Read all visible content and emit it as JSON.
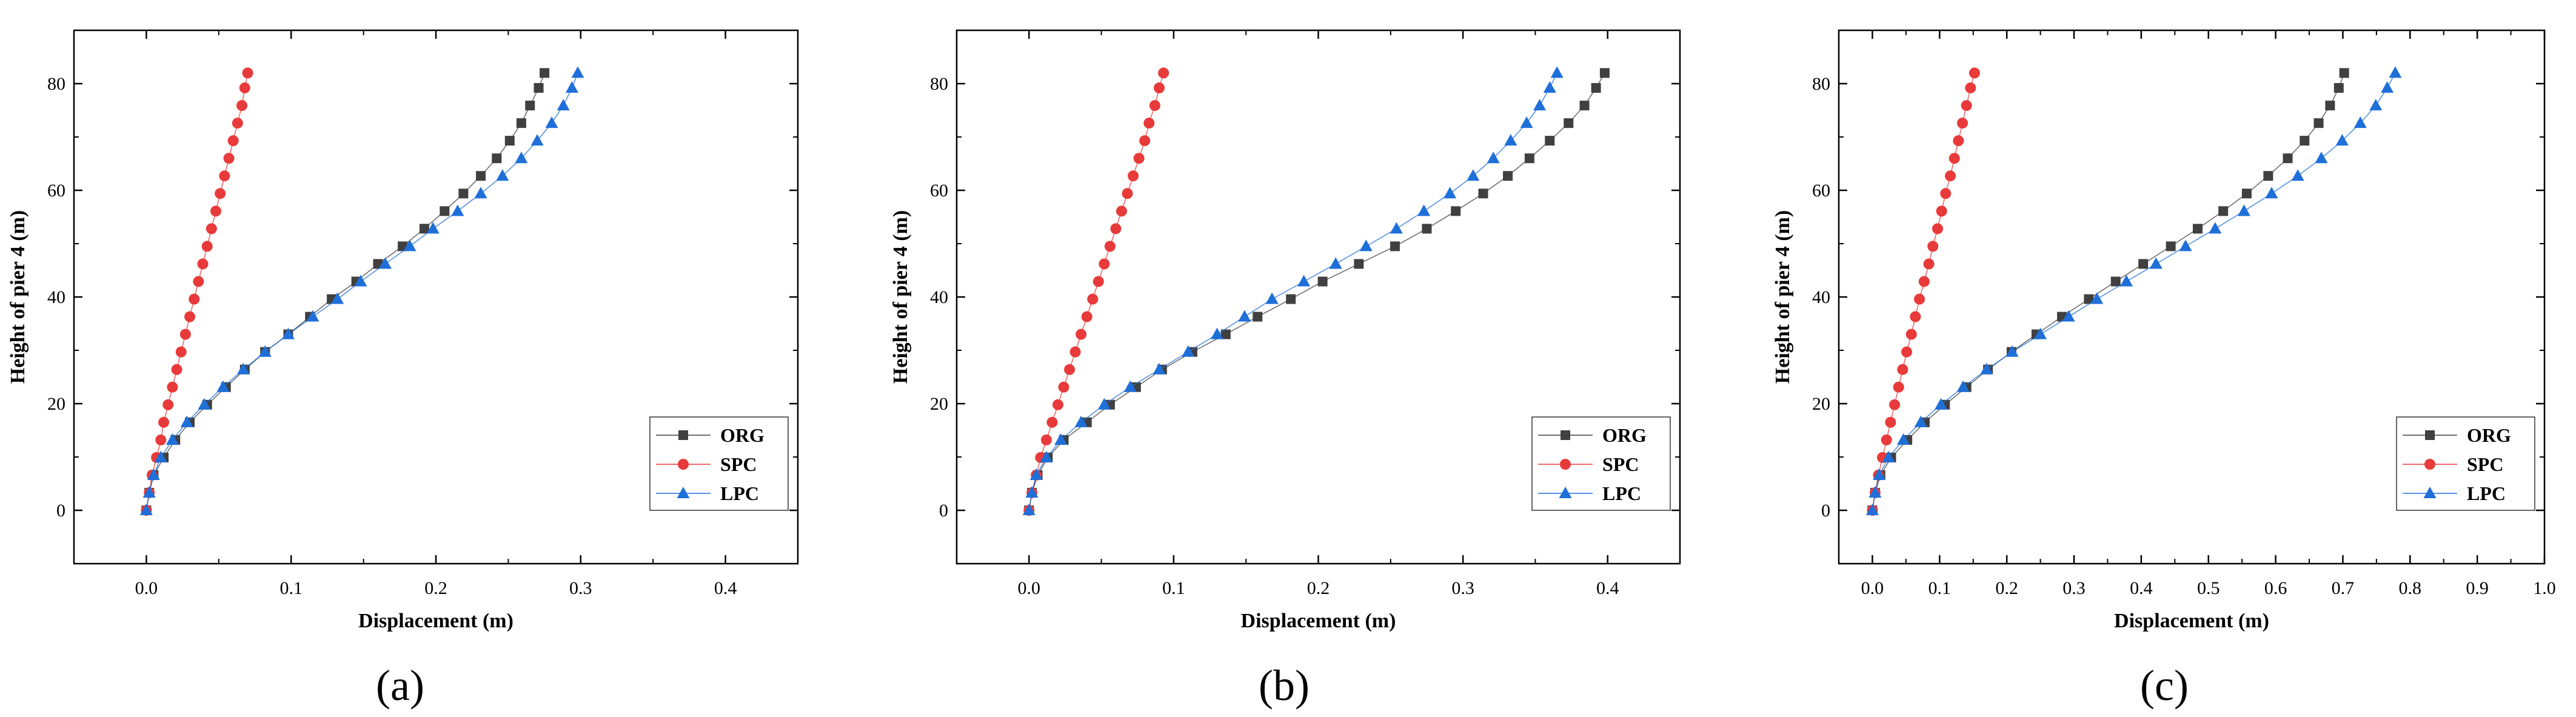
{
  "colors": {
    "ORG": "#404040",
    "SPC": "#e83a3a",
    "LPC": "#1f6fd9",
    "axis": "#000000"
  },
  "chart_data": [
    {
      "panel_label": "(a)",
      "type": "line",
      "title": "",
      "xlabel": "Displacement (m)",
      "ylabel": "Height of pier 4 (m)",
      "xlim": [
        -0.05,
        0.45
      ],
      "ylim": [
        -10,
        90
      ],
      "xticks": [
        0.0,
        0.1,
        0.2,
        0.3,
        0.4
      ],
      "xtick_labels": [
        "0.0",
        "0.1",
        "0.2",
        "0.3",
        "0.4"
      ],
      "yticks": [
        0,
        20,
        40,
        60,
        80
      ],
      "ytick_labels": [
        "0",
        "20",
        "40",
        "60",
        "80"
      ],
      "legend_position": "bottom-right",
      "height": [
        0,
        3.3,
        6.6,
        9.9,
        13.2,
        16.5,
        19.8,
        23.1,
        26.4,
        29.7,
        33.0,
        36.3,
        39.6,
        42.9,
        46.2,
        49.5,
        52.8,
        56.1,
        59.4,
        62.7,
        66.0,
        69.3,
        72.6,
        75.9,
        79.2,
        82.0
      ],
      "series": [
        {
          "name": "ORG",
          "marker": "square",
          "x": [
            0.0,
            0.002,
            0.005,
            0.012,
            0.02,
            0.03,
            0.042,
            0.055,
            0.068,
            0.082,
            0.098,
            0.113,
            0.128,
            0.145,
            0.16,
            0.177,
            0.192,
            0.206,
            0.219,
            0.231,
            0.242,
            0.251,
            0.259,
            0.265,
            0.271,
            0.275
          ]
        },
        {
          "name": "SPC",
          "marker": "circle",
          "x": [
            0.0,
            0.002,
            0.004,
            0.007,
            0.01,
            0.012,
            0.015,
            0.018,
            0.021,
            0.024,
            0.027,
            0.03,
            0.033,
            0.036,
            0.039,
            0.042,
            0.045,
            0.048,
            0.051,
            0.054,
            0.057,
            0.06,
            0.063,
            0.066,
            0.068,
            0.07
          ]
        },
        {
          "name": "LPC",
          "marker": "triangle",
          "x": [
            0.0,
            0.002,
            0.005,
            0.01,
            0.018,
            0.028,
            0.04,
            0.053,
            0.067,
            0.082,
            0.098,
            0.115,
            0.132,
            0.148,
            0.165,
            0.182,
            0.198,
            0.215,
            0.231,
            0.246,
            0.259,
            0.27,
            0.28,
            0.288,
            0.294,
            0.298
          ]
        }
      ]
    },
    {
      "panel_label": "(b)",
      "type": "line",
      "title": "",
      "xlabel": "Displacement (m)",
      "ylabel": "Height of pier 4 (m)",
      "xlim": [
        -0.05,
        0.45
      ],
      "ylim": [
        -10,
        90
      ],
      "xticks": [
        0.0,
        0.1,
        0.2,
        0.3,
        0.4
      ],
      "xtick_labels": [
        "0.0",
        "0.1",
        "0.2",
        "0.3",
        "0.4"
      ],
      "yticks": [
        0,
        20,
        40,
        60,
        80
      ],
      "ytick_labels": [
        "0",
        "20",
        "40",
        "60",
        "80"
      ],
      "legend_position": "bottom-right",
      "height": [
        0,
        3.3,
        6.6,
        9.9,
        13.2,
        16.5,
        19.8,
        23.1,
        26.4,
        29.7,
        33.0,
        36.3,
        39.6,
        42.9,
        46.2,
        49.5,
        52.8,
        56.1,
        59.4,
        62.7,
        66.0,
        69.3,
        72.6,
        75.9,
        79.2,
        82.0
      ],
      "series": [
        {
          "name": "ORG",
          "marker": "square",
          "x": [
            0.0,
            0.002,
            0.006,
            0.013,
            0.024,
            0.04,
            0.056,
            0.074,
            0.092,
            0.113,
            0.136,
            0.158,
            0.181,
            0.203,
            0.228,
            0.253,
            0.275,
            0.295,
            0.314,
            0.331,
            0.346,
            0.36,
            0.373,
            0.384,
            0.392,
            0.398
          ]
        },
        {
          "name": "SPC",
          "marker": "circle",
          "x": [
            0.0,
            0.002,
            0.005,
            0.008,
            0.012,
            0.016,
            0.02,
            0.024,
            0.028,
            0.032,
            0.036,
            0.04,
            0.044,
            0.048,
            0.052,
            0.056,
            0.06,
            0.064,
            0.068,
            0.072,
            0.076,
            0.08,
            0.083,
            0.087,
            0.09,
            0.093
          ]
        },
        {
          "name": "LPC",
          "marker": "triangle",
          "x": [
            0.0,
            0.002,
            0.005,
            0.012,
            0.022,
            0.036,
            0.052,
            0.07,
            0.09,
            0.11,
            0.13,
            0.149,
            0.168,
            0.19,
            0.212,
            0.233,
            0.254,
            0.273,
            0.291,
            0.307,
            0.321,
            0.333,
            0.344,
            0.353,
            0.36,
            0.365
          ]
        }
      ]
    },
    {
      "panel_label": "(c)",
      "type": "line",
      "title": "",
      "xlabel": "Displacement (m)",
      "ylabel": "Height of pier 4 (m)",
      "xlim": [
        -0.05,
        1.0
      ],
      "ylim": [
        -10,
        90
      ],
      "xticks": [
        0.0,
        0.1,
        0.2,
        0.3,
        0.4,
        0.5,
        0.6,
        0.7,
        0.8,
        0.9,
        1.0
      ],
      "xtick_labels": [
        "0.0",
        "0.1",
        "0.2",
        "0.3",
        "0.4",
        "0.5",
        "0.6",
        "0.7",
        "0.8",
        "0.9",
        "1.0"
      ],
      "yticks": [
        0,
        20,
        40,
        60,
        80
      ],
      "ytick_labels": [
        "0",
        "20",
        "40",
        "60",
        "80"
      ],
      "legend_position": "bottom-right",
      "height": [
        0,
        3.3,
        6.6,
        9.9,
        13.2,
        16.5,
        19.8,
        23.1,
        26.4,
        29.7,
        33.0,
        36.3,
        39.6,
        42.9,
        46.2,
        49.5,
        52.8,
        56.1,
        59.4,
        62.7,
        66.0,
        69.3,
        72.6,
        75.9,
        79.2,
        82.0
      ],
      "series": [
        {
          "name": "ORG",
          "marker": "square",
          "x": [
            0.0,
            0.004,
            0.012,
            0.028,
            0.052,
            0.078,
            0.108,
            0.14,
            0.172,
            0.207,
            0.244,
            0.282,
            0.322,
            0.362,
            0.403,
            0.444,
            0.484,
            0.522,
            0.557,
            0.589,
            0.618,
            0.643,
            0.664,
            0.681,
            0.694,
            0.702
          ]
        },
        {
          "name": "SPC",
          "marker": "circle",
          "x": [
            0.0,
            0.004,
            0.009,
            0.015,
            0.021,
            0.027,
            0.033,
            0.039,
            0.045,
            0.051,
            0.058,
            0.064,
            0.07,
            0.077,
            0.084,
            0.09,
            0.097,
            0.103,
            0.109,
            0.116,
            0.122,
            0.128,
            0.134,
            0.14,
            0.146,
            0.152
          ]
        },
        {
          "name": "LPC",
          "marker": "triangle",
          "x": [
            0.0,
            0.004,
            0.01,
            0.024,
            0.046,
            0.072,
            0.102,
            0.135,
            0.17,
            0.208,
            0.25,
            0.292,
            0.334,
            0.378,
            0.422,
            0.466,
            0.51,
            0.553,
            0.594,
            0.633,
            0.668,
            0.699,
            0.726,
            0.749,
            0.766,
            0.778
          ]
        }
      ]
    }
  ]
}
